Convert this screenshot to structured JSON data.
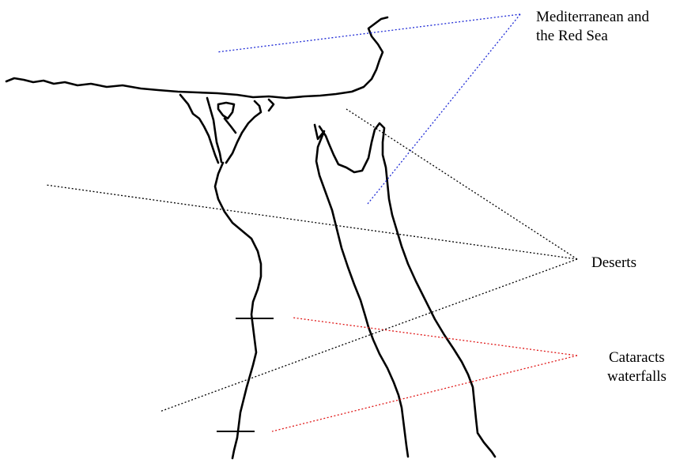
{
  "labels": {
    "sea_line1": "Mediterranean and",
    "sea_line2": "the Red Sea",
    "deserts": "Deserts",
    "cataracts_line1": "Cataracts",
    "cataracts_line2": "waterfalls"
  },
  "colors": {
    "sea_pointer": "#1f2bd6",
    "desert_pointer": "#000000",
    "cataract_pointer": "#e01a1a",
    "outline": "#000000"
  }
}
